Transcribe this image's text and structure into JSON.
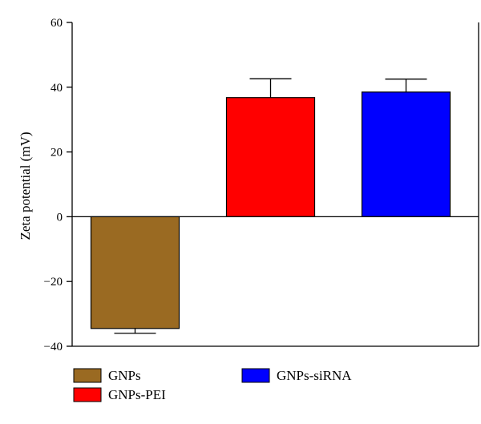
{
  "chart_data": {
    "type": "bar",
    "title": "",
    "xlabel": "",
    "ylabel": "Zeta potential (mV)",
    "ylim": [
      -40,
      60
    ],
    "yticks": [
      -40,
      -20,
      0,
      20,
      40,
      60
    ],
    "ytick_labels": [
      "−40",
      "−20",
      "0",
      "20",
      "40",
      "60"
    ],
    "grid": false,
    "legend_position": "bottom",
    "categories": [
      "GNPs",
      "GNPs-PEI",
      "GNPs-siRNA"
    ],
    "values": [
      -34.5,
      36.8,
      38.5
    ],
    "errors": [
      1.5,
      5.8,
      4.0
    ],
    "colors": [
      "#9a6a22",
      "#ff0000",
      "#0000ff"
    ],
    "legend": [
      "GNPs",
      "GNPs-PEI",
      "GNPs-siRNA"
    ]
  }
}
